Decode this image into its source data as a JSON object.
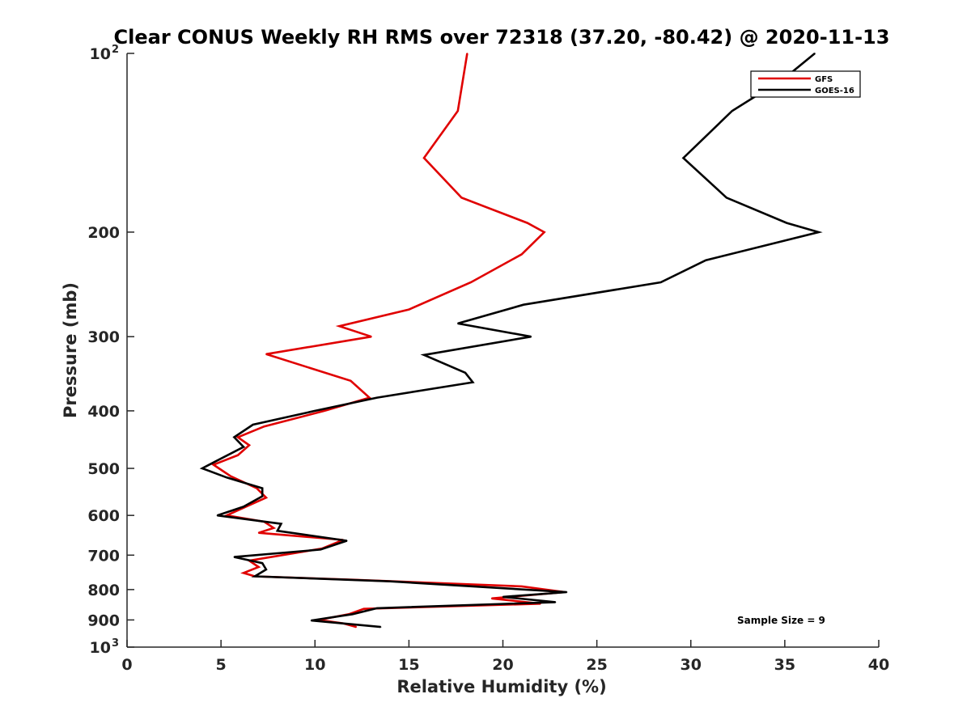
{
  "chart_data": {
    "type": "line",
    "title": "Clear CONUS Weekly RH RMS over 72318 (37.20, -80.42) @ 2020-11-13",
    "xlabel": "Relative Humidity (%)",
    "ylabel": "Pressure (mb)",
    "xlim": [
      0,
      40
    ],
    "ylim": [
      100,
      1000
    ],
    "yscale": "log",
    "y_reversed": true,
    "grid": false,
    "legend_position": "top-right",
    "xticks": [
      0,
      5,
      10,
      15,
      20,
      25,
      30,
      35,
      40
    ],
    "xtick_labels": [
      "0",
      "5",
      "10",
      "15",
      "20",
      "25",
      "30",
      "35",
      "40"
    ],
    "yticks": [
      {
        "value": 100,
        "label": "10",
        "sup": "2"
      },
      {
        "value": 200,
        "label": "200",
        "sup": ""
      },
      {
        "value": 300,
        "label": "300",
        "sup": ""
      },
      {
        "value": 400,
        "label": "400",
        "sup": ""
      },
      {
        "value": 500,
        "label": "500",
        "sup": ""
      },
      {
        "value": 600,
        "label": "600",
        "sup": ""
      },
      {
        "value": 700,
        "label": "700",
        "sup": ""
      },
      {
        "value": 800,
        "label": "800",
        "sup": ""
      },
      {
        "value": 900,
        "label": "900",
        "sup": ""
      },
      {
        "value": 1000,
        "label": "10",
        "sup": "3"
      }
    ],
    "annotation": "Sample Size = 9",
    "series": [
      {
        "name": "GFS",
        "color": "#e00000",
        "points": [
          [
            18.1,
            100
          ],
          [
            17.6,
            125
          ],
          [
            15.8,
            150
          ],
          [
            17.8,
            175
          ],
          [
            21.3,
            193
          ],
          [
            22.2,
            200
          ],
          [
            21.0,
            218
          ],
          [
            18.3,
            243
          ],
          [
            15.0,
            270
          ],
          [
            11.3,
            288
          ],
          [
            13.0,
            300
          ],
          [
            7.4,
            321
          ],
          [
            11.9,
            356
          ],
          [
            12.9,
            380
          ],
          [
            10.5,
            400
          ],
          [
            7.3,
            425
          ],
          [
            5.9,
            443
          ],
          [
            6.5,
            457
          ],
          [
            5.9,
            475
          ],
          [
            4.6,
            493
          ],
          [
            5.5,
            515
          ],
          [
            6.9,
            540
          ],
          [
            7.4,
            560
          ],
          [
            6.6,
            575
          ],
          [
            5.3,
            600
          ],
          [
            7.3,
            615
          ],
          [
            7.8,
            630
          ],
          [
            7.0,
            642
          ],
          [
            11.5,
            660
          ],
          [
            10.4,
            682
          ],
          [
            6.5,
            715
          ],
          [
            7.0,
            733
          ],
          [
            6.2,
            750
          ],
          [
            6.8,
            760
          ],
          [
            12.0,
            770
          ],
          [
            21.0,
            790
          ],
          [
            23.3,
            808
          ],
          [
            19.4,
            828
          ],
          [
            22.0,
            845
          ],
          [
            12.6,
            862
          ],
          [
            11.8,
            880
          ],
          [
            10.2,
            900
          ],
          [
            11.5,
            912
          ],
          [
            12.2,
            925
          ]
        ]
      },
      {
        "name": "GOES-16",
        "color": "#000000",
        "points": [
          [
            36.6,
            100
          ],
          [
            35.0,
            110
          ],
          [
            32.2,
            125
          ],
          [
            29.6,
            150
          ],
          [
            31.9,
            175
          ],
          [
            35.1,
            193
          ],
          [
            36.8,
            200
          ],
          [
            30.8,
            223
          ],
          [
            28.4,
            243
          ],
          [
            21.1,
            265
          ],
          [
            17.6,
            285
          ],
          [
            21.5,
            300
          ],
          [
            15.8,
            322
          ],
          [
            18.0,
            345
          ],
          [
            18.4,
            358
          ],
          [
            13.3,
            380
          ],
          [
            10.0,
            400
          ],
          [
            6.7,
            422
          ],
          [
            5.7,
            443
          ],
          [
            6.2,
            460
          ],
          [
            4.8,
            485
          ],
          [
            4.0,
            500
          ],
          [
            5.3,
            518
          ],
          [
            7.2,
            540
          ],
          [
            7.2,
            557
          ],
          [
            6.2,
            580
          ],
          [
            4.8,
            600
          ],
          [
            8.2,
            620
          ],
          [
            8.0,
            637
          ],
          [
            11.7,
            662
          ],
          [
            10.3,
            685
          ],
          [
            5.7,
            705
          ],
          [
            7.2,
            722
          ],
          [
            7.4,
            740
          ],
          [
            6.8,
            760
          ],
          [
            14.0,
            775
          ],
          [
            23.4,
            808
          ],
          [
            20.0,
            823
          ],
          [
            22.8,
            840
          ],
          [
            13.3,
            860
          ],
          [
            12.0,
            880
          ],
          [
            9.8,
            902
          ],
          [
            13.5,
            925
          ]
        ]
      }
    ]
  }
}
